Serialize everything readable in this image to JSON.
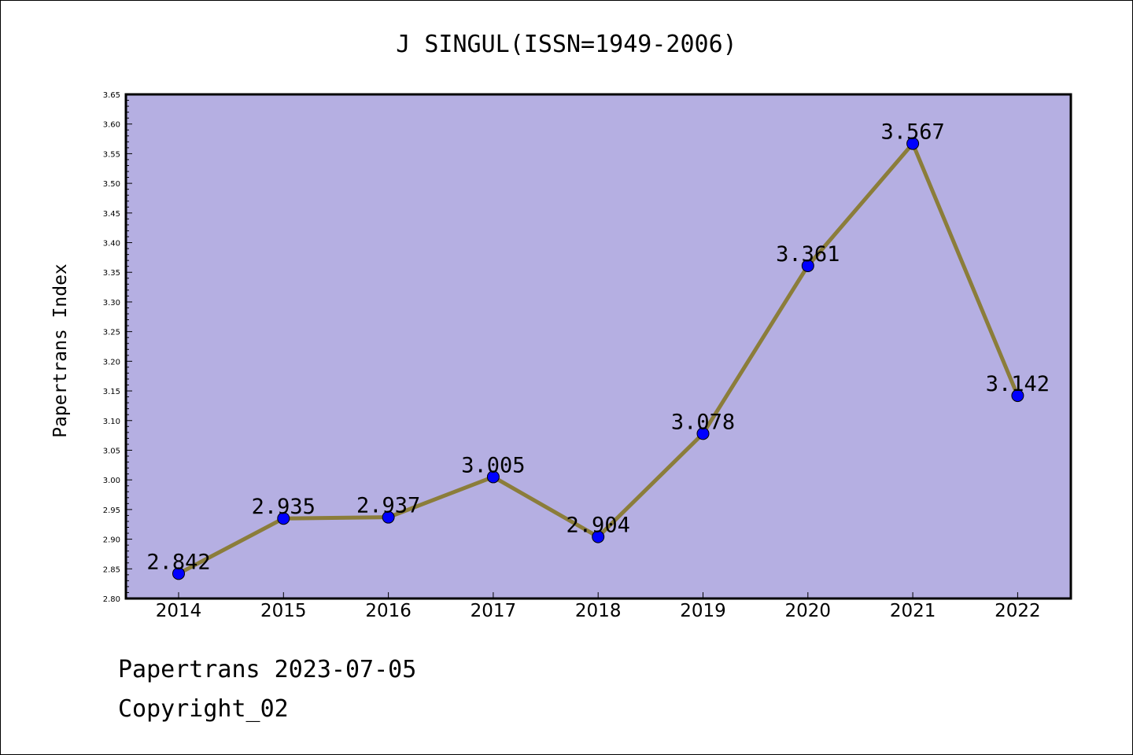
{
  "chart_data": {
    "type": "line",
    "title": "J SINGUL(ISSN=1949-2006)",
    "ylabel": "Papertrans Index",
    "xlabel": "",
    "ylim": [
      2.8,
      3.65
    ],
    "yticks": [
      "2.80",
      "2.85",
      "2.90",
      "2.95",
      "3.00",
      "3.05",
      "3.10",
      "3.15",
      "3.20",
      "3.25",
      "3.30",
      "3.35",
      "3.40",
      "3.45",
      "3.50",
      "3.55",
      "3.60",
      "3.65"
    ],
    "categories": [
      "2014",
      "2015",
      "2016",
      "2017",
      "2018",
      "2019",
      "2020",
      "2021",
      "2022"
    ],
    "values": [
      2.842,
      2.935,
      2.937,
      3.005,
      2.904,
      3.078,
      3.361,
      3.567,
      3.142
    ],
    "data_labels": [
      "2.842",
      "2.935",
      "2.937",
      "3.005",
      "2.904",
      "3.078",
      "3.361",
      "3.567",
      "3.142"
    ],
    "grid": false,
    "colors": {
      "plot_bg": "#b5afe2",
      "line": "#8b7d3a",
      "marker": "#0000ff"
    }
  },
  "footer": {
    "line1": "Papertrans 2023-07-05",
    "line2": "Copyright_02"
  }
}
